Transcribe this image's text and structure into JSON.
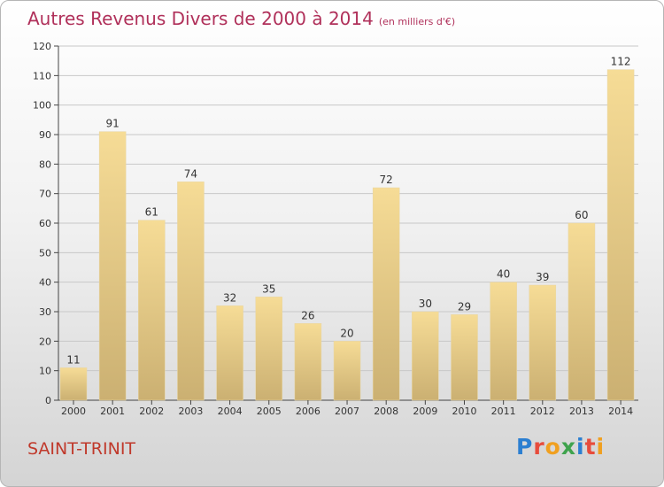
{
  "title": "Autres Revenus Divers de 2000 à 2014",
  "subtitle": "(en milliers d'€)",
  "commune": "SAINT-TRINIT",
  "logo": {
    "text": "Proxiti",
    "letters": [
      {
        "ch": "P",
        "color": "#2c7fd1"
      },
      {
        "ch": "r",
        "color": "#e74c3c"
      },
      {
        "ch": "o",
        "color": "#f0a020"
      },
      {
        "ch": "x",
        "color": "#3fa34d"
      },
      {
        "ch": "i",
        "color": "#2c7fd1"
      },
      {
        "ch": "t",
        "color": "#e74c3c"
      },
      {
        "ch": "i",
        "color": "#f0a020"
      }
    ]
  },
  "colors": {
    "title": "#b0305a",
    "bar_top": "#f6dc96",
    "bar_bottom": "#cbb072",
    "grid": "#c8c8c8",
    "axis": "#444444"
  },
  "chart_data": {
    "type": "bar",
    "categories": [
      "2000",
      "2001",
      "2002",
      "2003",
      "2004",
      "2005",
      "2006",
      "2007",
      "2008",
      "2009",
      "2010",
      "2011",
      "2012",
      "2013",
      "2014"
    ],
    "values": [
      11,
      91,
      61,
      74,
      32,
      35,
      26,
      20,
      72,
      30,
      29,
      40,
      39,
      60,
      112
    ],
    "ylim": [
      0,
      120
    ],
    "yticks": [
      0,
      10,
      20,
      30,
      40,
      50,
      60,
      70,
      80,
      90,
      100,
      110,
      120
    ],
    "grid": true,
    "xlabel": "",
    "ylabel": ""
  }
}
